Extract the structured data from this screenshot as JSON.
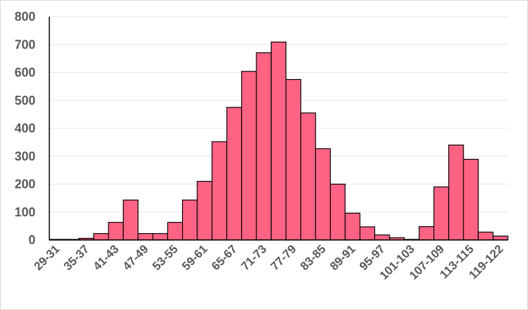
{
  "chart_data": {
    "type": "bar",
    "title": "",
    "xlabel": "",
    "ylabel": "",
    "ylim": [
      0,
      800
    ],
    "yticks": [
      0,
      100,
      200,
      300,
      400,
      500,
      600,
      700,
      800
    ],
    "grid": true,
    "legend": "none",
    "bar_color": "#ff6384",
    "categories": [
      "29-31",
      "32-34",
      "35-37",
      "38-40",
      "41-43",
      "44-46",
      "47-49",
      "50-52",
      "53-55",
      "56-58",
      "59-61",
      "62-64",
      "65-67",
      "68-70",
      "71-73",
      "74-76",
      "77-79",
      "80-82",
      "83-85",
      "86-88",
      "89-91",
      "92-94",
      "95-97",
      "98-100",
      "101-103",
      "104-106",
      "107-109",
      "110-112",
      "113-115",
      "116-118",
      "119-122"
    ],
    "xtick_labels_shown": [
      "29-31",
      "35-37",
      "41-43",
      "47-49",
      "53-55",
      "59-61",
      "65-67",
      "71-73",
      "77-79",
      "83-85",
      "89-91",
      "95-97",
      "101-103",
      "107-109",
      "113-115",
      "119-122"
    ],
    "values": [
      2,
      2,
      6,
      23,
      63,
      143,
      23,
      23,
      63,
      143,
      210,
      352,
      475,
      604,
      671,
      709,
      575,
      455,
      327,
      200,
      96,
      47,
      18,
      8,
      2,
      48,
      190,
      340,
      289,
      28,
      14
    ]
  }
}
